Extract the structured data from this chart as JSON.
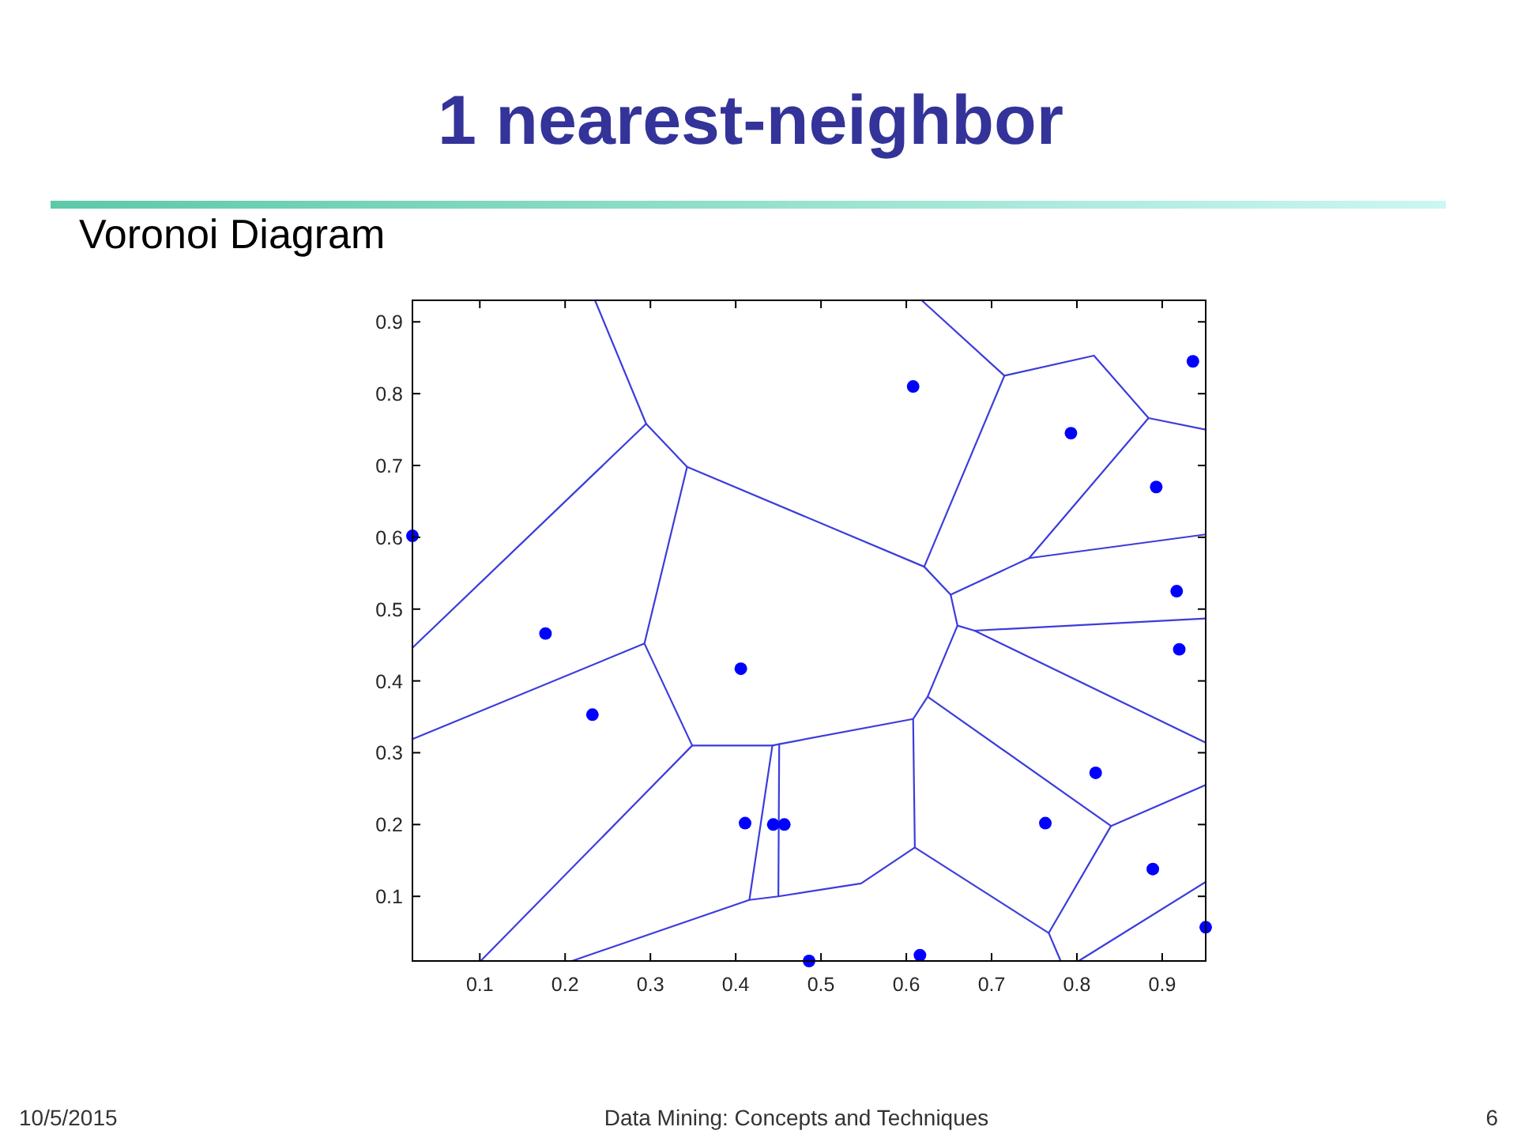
{
  "chart_data": {
    "type": "scatter",
    "title": "1 nearest-neighbor",
    "subtitle": "Voronoi Diagram",
    "annotations": [
      "10/5/2015",
      "Data Mining: Concepts and Techniques",
      "6"
    ],
    "xlim": [
      0.021,
      0.951
    ],
    "ylim": [
      0.01,
      0.93
    ],
    "xticks": [
      0.1,
      0.2,
      0.3,
      0.4,
      0.5,
      0.6,
      0.7,
      0.8,
      0.9
    ],
    "yticks": [
      0.1,
      0.2,
      0.3,
      0.4,
      0.5,
      0.6,
      0.7,
      0.8,
      0.9
    ],
    "grid": false,
    "line_style": "solid",
    "series": [
      {
        "type": "line",
        "color": "#3c3cdc",
        "x": [
          0.235,
          0.295,
          0.021
        ],
        "values": [
          0.93,
          0.758,
          0.446
        ]
      },
      {
        "type": "line",
        "color": "#3c3cdc",
        "x": [
          0.295,
          0.343,
          0.621,
          0.715,
          0.618
        ],
        "values": [
          0.758,
          0.698,
          0.559,
          0.825,
          0.93
        ]
      },
      {
        "type": "line",
        "color": "#3c3cdc",
        "x": [
          0.715,
          0.82,
          0.884,
          0.951
        ],
        "values": [
          0.825,
          0.853,
          0.766,
          0.75
        ]
      },
      {
        "type": "line",
        "color": "#3c3cdc",
        "x": [
          0.884,
          0.744,
          0.951
        ],
        "values": [
          0.766,
          0.571,
          0.604
        ]
      },
      {
        "type": "line",
        "color": "#3c3cdc",
        "x": [
          0.744,
          0.652,
          0.621
        ],
        "values": [
          0.571,
          0.52,
          0.559
        ]
      },
      {
        "type": "line",
        "color": "#3c3cdc",
        "x": [
          0.652,
          0.66,
          0.625,
          0.608,
          0.61,
          0.547,
          0.45,
          0.416,
          0.208
        ],
        "values": [
          0.52,
          0.477,
          0.378,
          0.347,
          0.168,
          0.118,
          0.1,
          0.095,
          0.01
        ]
      },
      {
        "type": "line",
        "color": "#3c3cdc",
        "x": [
          0.343,
          0.293,
          0.021
        ],
        "values": [
          0.698,
          0.452,
          0.319
        ]
      },
      {
        "type": "line",
        "color": "#3c3cdc",
        "x": [
          0.293,
          0.349,
          0.101
        ],
        "values": [
          0.452,
          0.31,
          0.01
        ]
      },
      {
        "type": "line",
        "color": "#3c3cdc",
        "x": [
          0.349,
          0.443,
          0.451,
          0.608
        ],
        "values": [
          0.31,
          0.31,
          0.312,
          0.347
        ]
      },
      {
        "type": "line",
        "color": "#3c3cdc",
        "x": [
          0.443,
          0.416
        ],
        "values": [
          0.31,
          0.095
        ]
      },
      {
        "type": "line",
        "color": "#3c3cdc",
        "x": [
          0.451,
          0.45
        ],
        "values": [
          0.312,
          0.1
        ]
      },
      {
        "type": "line",
        "color": "#3c3cdc",
        "x": [
          0.66,
          0.68,
          0.951
        ],
        "values": [
          0.477,
          0.47,
          0.487
        ]
      },
      {
        "type": "line",
        "color": "#3c3cdc",
        "x": [
          0.68,
          0.951
        ],
        "values": [
          0.47,
          0.314
        ]
      },
      {
        "type": "line",
        "color": "#3c3cdc",
        "x": [
          0.625,
          0.84,
          0.951
        ],
        "values": [
          0.378,
          0.198,
          0.255
        ]
      },
      {
        "type": "line",
        "color": "#3c3cdc",
        "x": [
          0.84,
          0.767,
          0.781
        ],
        "values": [
          0.198,
          0.049,
          0.01
        ]
      },
      {
        "type": "line",
        "color": "#3c3cdc",
        "x": [
          0.767,
          0.61
        ],
        "values": [
          0.049,
          0.168
        ]
      },
      {
        "type": "line",
        "color": "#3c3cdc",
        "x": [
          0.802,
          0.951
        ],
        "values": [
          0.01,
          0.12
        ]
      },
      {
        "color": "#0000ff",
        "marker": "circle",
        "x": [
          0.021,
          0.177,
          0.232,
          0.406,
          0.411,
          0.444,
          0.457,
          0.486,
          0.616,
          0.763,
          0.822,
          0.92,
          0.889,
          0.951,
          0.608,
          0.793,
          0.893,
          0.936,
          0.917
        ],
        "values": [
          0.602,
          0.466,
          0.353,
          0.417,
          0.202,
          0.2,
          0.2,
          0.01,
          0.018,
          0.202,
          0.272,
          0.444,
          0.138,
          0.057,
          0.81,
          0.745,
          0.67,
          0.845,
          0.525
        ]
      }
    ]
  }
}
